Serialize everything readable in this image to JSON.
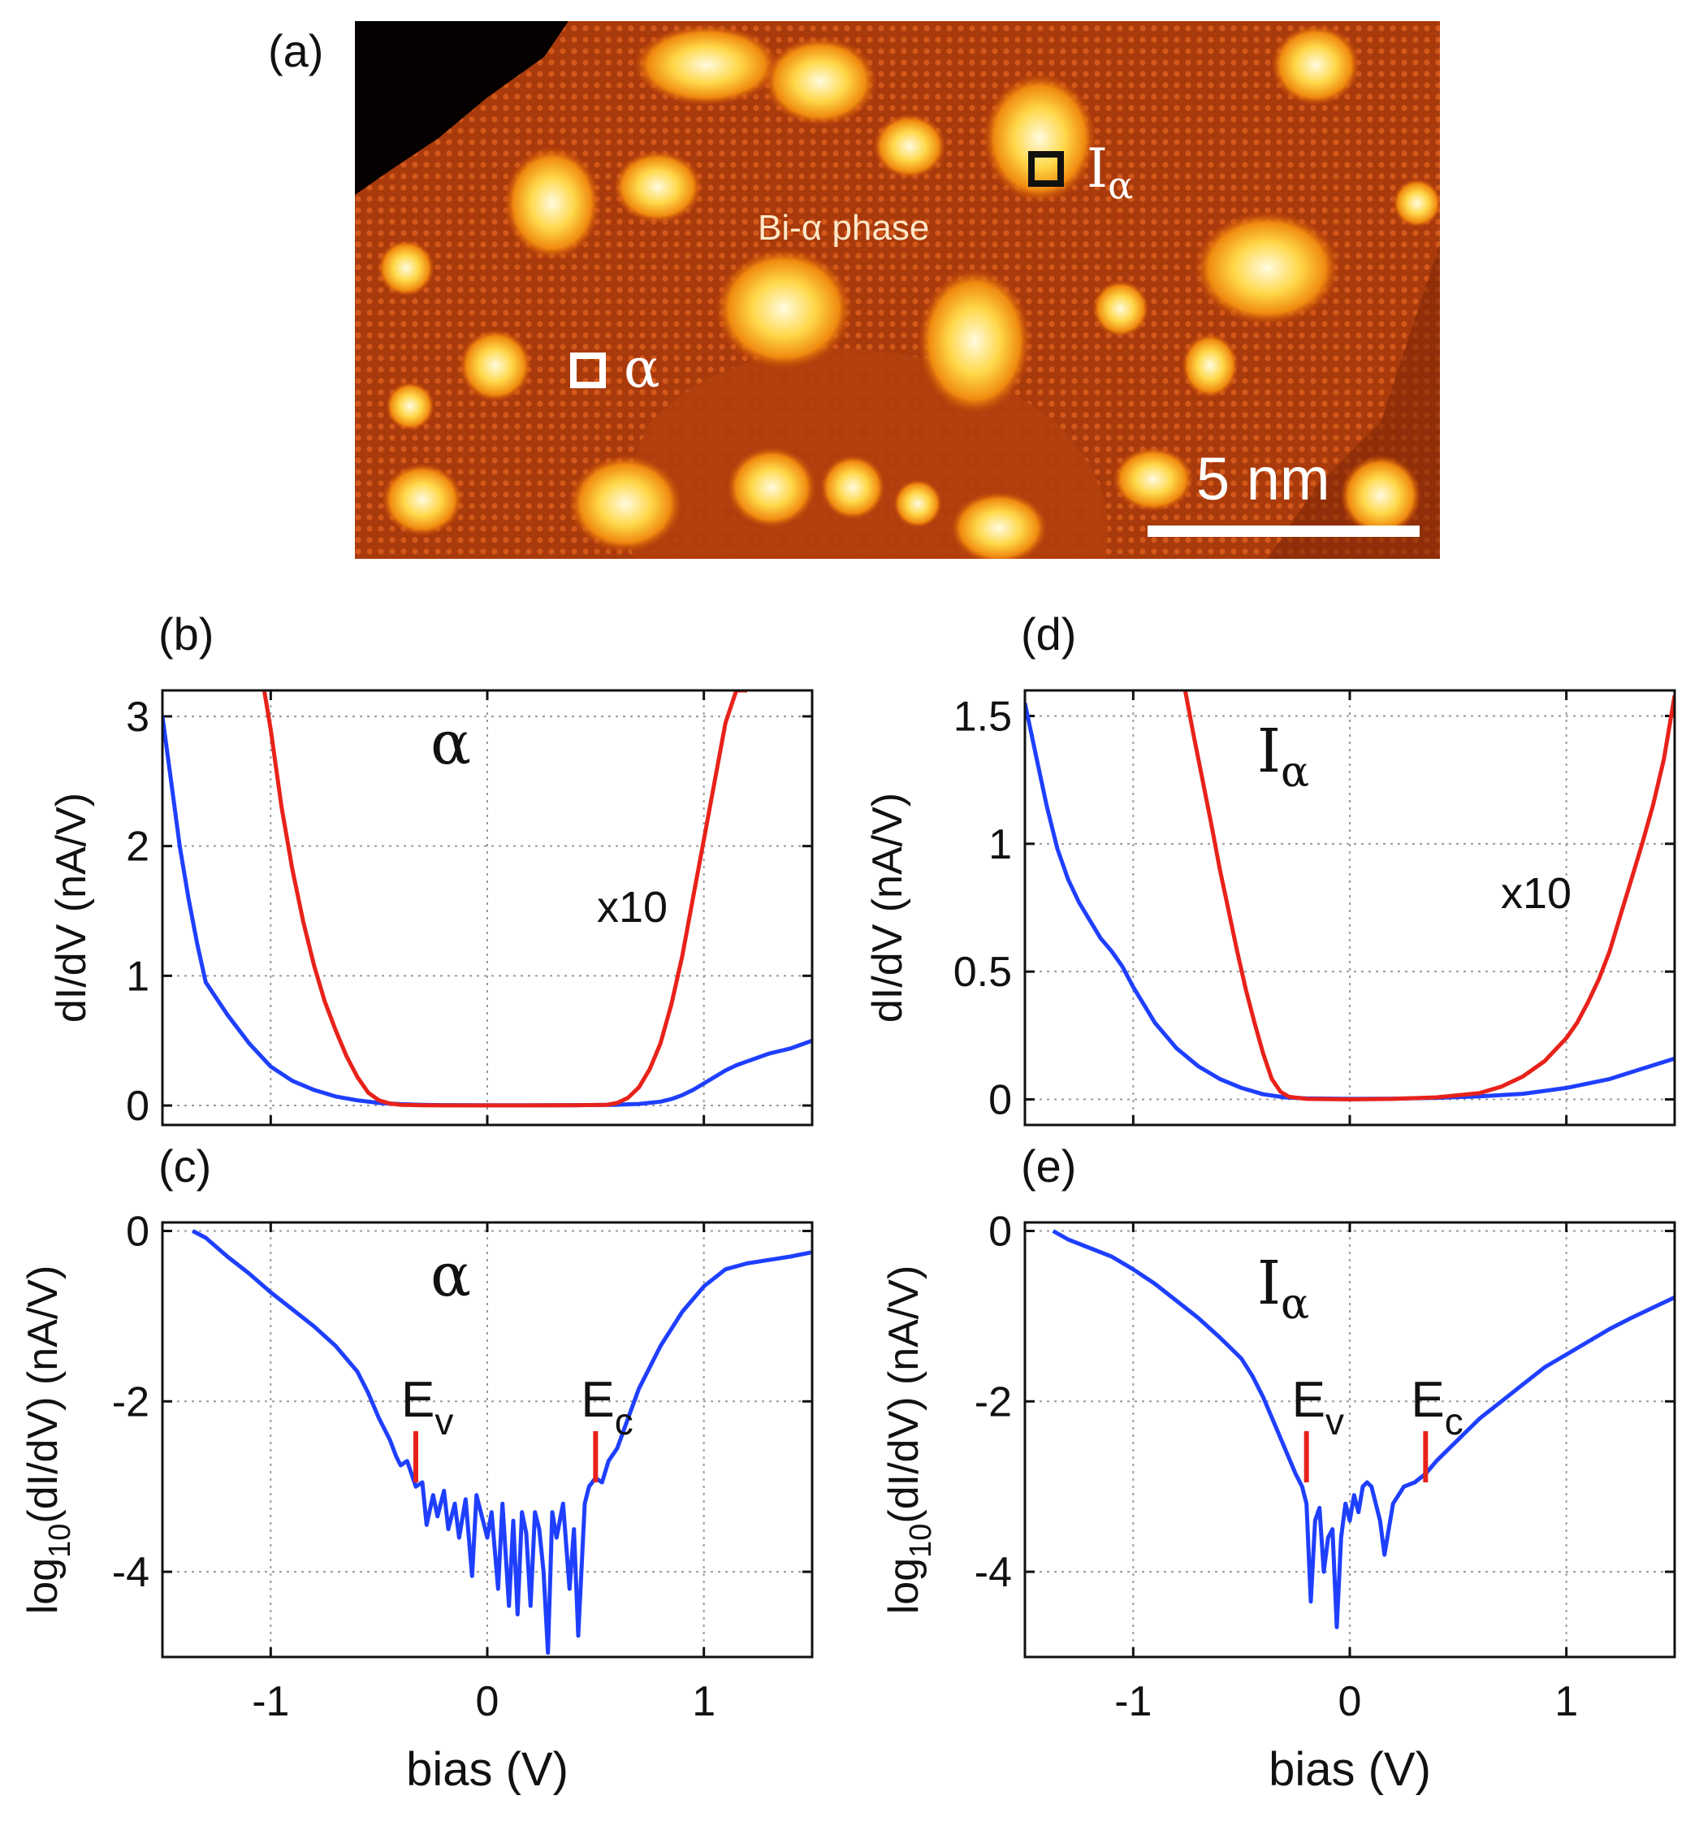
{
  "figure": {
    "colors": {
      "blue": "#1f3fff",
      "red": "#e8221a",
      "grid": "#9a9a9a"
    }
  },
  "panel_a": {
    "label": "(a)",
    "phase_label": "Bi-α phase",
    "marker_alpha": "α",
    "marker_ialpha": {
      "main": "I",
      "sub": "α"
    },
    "scale_bar": "5 nm",
    "image": "STM topograph (orange/yellow heat colormap) showing Bi-α phase islands with bright clusters"
  },
  "chart_data": [
    {
      "id": "b",
      "label": "(b)",
      "type": "line",
      "annotation": "α",
      "scale_note": "x10",
      "xlabel": "",
      "ylabel": "dI/dV (nA/V)",
      "xlim": [
        -1.5,
        1.5
      ],
      "ylim": [
        -0.15,
        3.2
      ],
      "xticks": [
        -1,
        0,
        1
      ],
      "xticklabels": [
        "",
        "",
        ""
      ],
      "yticks": [
        0,
        1,
        2,
        3
      ],
      "yticklabels": [
        "0",
        "1",
        "2",
        "3"
      ],
      "grid": true,
      "series": [
        {
          "name": "dI/dV",
          "color": "blue",
          "x": [
            -1.5,
            -1.46,
            -1.42,
            -1.38,
            -1.34,
            -1.3,
            -1.26,
            -1.2,
            -1.1,
            -1.0,
            -0.9,
            -0.8,
            -0.7,
            -0.6,
            -0.5,
            -0.4,
            -0.3,
            -0.2,
            0,
            0.2,
            0.4,
            0.6,
            0.7,
            0.8,
            0.85,
            0.9,
            0.95,
            1.0,
            1.05,
            1.1,
            1.15,
            1.2,
            1.25,
            1.3,
            1.35,
            1.4,
            1.45,
            1.5
          ],
          "y": [
            3.0,
            2.5,
            2.0,
            1.6,
            1.25,
            0.95,
            0.85,
            0.7,
            0.48,
            0.3,
            0.19,
            0.12,
            0.07,
            0.04,
            0.02,
            0.01,
            0.005,
            0.003,
            0.002,
            0.002,
            0.003,
            0.006,
            0.012,
            0.03,
            0.05,
            0.08,
            0.12,
            0.17,
            0.22,
            0.27,
            0.31,
            0.34,
            0.37,
            0.4,
            0.42,
            0.44,
            0.47,
            0.5
          ]
        },
        {
          "name": "dI/dV x10",
          "color": "red",
          "x": [
            -1.03,
            -1.0,
            -0.95,
            -0.9,
            -0.85,
            -0.8,
            -0.75,
            -0.7,
            -0.65,
            -0.6,
            -0.55,
            -0.5,
            -0.45,
            -0.4,
            -0.3,
            -0.2,
            0,
            0.2,
            0.4,
            0.55,
            0.6,
            0.65,
            0.7,
            0.75,
            0.8,
            0.85,
            0.9,
            0.95,
            1.0,
            1.05,
            1.1,
            1.15,
            1.2
          ],
          "y": [
            3.2,
            2.9,
            2.3,
            1.82,
            1.42,
            1.08,
            0.8,
            0.58,
            0.38,
            0.22,
            0.1,
            0.04,
            0.015,
            0.005,
            0.002,
            0.001,
            0.001,
            0.001,
            0.002,
            0.005,
            0.02,
            0.06,
            0.14,
            0.28,
            0.48,
            0.78,
            1.15,
            1.6,
            2.05,
            2.5,
            2.95,
            3.2,
            3.2
          ]
        }
      ]
    },
    {
      "id": "c",
      "label": "(c)",
      "type": "line",
      "annotation": "α",
      "xlabel": "bias (V)",
      "ylabel": "log10(dI/dV) (nA/V)",
      "ylabel_parts": {
        "pre": "log",
        "sub": "10",
        "post": "(dI/dV)  (nA/V)"
      },
      "xlim": [
        -1.5,
        1.5
      ],
      "ylim": [
        -5,
        0.1
      ],
      "xticks": [
        -1,
        0,
        1
      ],
      "xticklabels": [
        "-1",
        "0",
        "1"
      ],
      "yticks": [
        0,
        -2,
        -4
      ],
      "yticklabels": [
        "0",
        "-2",
        "-4"
      ],
      "grid": true,
      "markers": [
        {
          "main": "E",
          "sub": "v",
          "x": -0.33,
          "y_range": [
            -2.95,
            -2.35
          ]
        },
        {
          "main": "E",
          "sub": "c",
          "x": 0.5,
          "y_range": [
            -2.95,
            -2.35
          ]
        }
      ],
      "series": [
        {
          "name": "log10(dI/dV)",
          "color": "blue",
          "x": [
            -1.36,
            -1.3,
            -1.2,
            -1.1,
            -1.0,
            -0.9,
            -0.8,
            -0.7,
            -0.6,
            -0.55,
            -0.5,
            -0.45,
            -0.42,
            -0.4,
            -0.37,
            -0.35,
            -0.33,
            -0.3,
            -0.28,
            -0.25,
            -0.23,
            -0.2,
            -0.18,
            -0.15,
            -0.13,
            -0.1,
            -0.07,
            -0.05,
            -0.02,
            0,
            0.02,
            0.05,
            0.07,
            0.1,
            0.12,
            0.14,
            0.16,
            0.18,
            0.2,
            0.22,
            0.24,
            0.26,
            0.28,
            0.3,
            0.32,
            0.35,
            0.38,
            0.4,
            0.42,
            0.45,
            0.47,
            0.5,
            0.53,
            0.56,
            0.6,
            0.65,
            0.7,
            0.8,
            0.9,
            1.0,
            1.1,
            1.2,
            1.3,
            1.4,
            1.5
          ],
          "y": [
            0,
            -0.08,
            -0.3,
            -0.5,
            -0.72,
            -0.92,
            -1.12,
            -1.35,
            -1.65,
            -1.9,
            -2.2,
            -2.45,
            -2.65,
            -2.75,
            -2.7,
            -2.85,
            -3.0,
            -2.95,
            -3.45,
            -3.1,
            -3.35,
            -3.05,
            -3.5,
            -3.2,
            -3.6,
            -3.15,
            -4.05,
            -3.1,
            -3.4,
            -3.6,
            -3.3,
            -4.2,
            -3.2,
            -4.4,
            -3.4,
            -4.5,
            -3.3,
            -3.55,
            -4.4,
            -3.3,
            -3.5,
            -4.0,
            -4.95,
            -3.3,
            -3.6,
            -3.2,
            -4.2,
            -3.5,
            -4.75,
            -3.2,
            -3.0,
            -2.9,
            -2.95,
            -2.7,
            -2.55,
            -2.2,
            -1.85,
            -1.35,
            -0.95,
            -0.65,
            -0.45,
            -0.38,
            -0.34,
            -0.3,
            -0.25
          ]
        }
      ]
    },
    {
      "id": "d",
      "label": "(d)",
      "type": "line",
      "annotation": {
        "main": "I",
        "sub": "α"
      },
      "scale_note": "x10",
      "xlabel": "",
      "ylabel": "dI/dV (nA/V)",
      "xlim": [
        -1.5,
        1.5
      ],
      "ylim": [
        -0.1,
        1.6
      ],
      "xticks": [
        -1,
        0,
        1
      ],
      "xticklabels": [
        "",
        "",
        ""
      ],
      "yticks": [
        0,
        0.5,
        1,
        1.5
      ],
      "yticklabels": [
        "0",
        "0.5",
        "1",
        "1.5"
      ],
      "grid": true,
      "series": [
        {
          "name": "dI/dV",
          "color": "blue",
          "x": [
            -1.5,
            -1.45,
            -1.4,
            -1.35,
            -1.3,
            -1.25,
            -1.2,
            -1.15,
            -1.1,
            -1.05,
            -1.0,
            -0.9,
            -0.8,
            -0.7,
            -0.6,
            -0.5,
            -0.4,
            -0.3,
            -0.2,
            0,
            0.2,
            0.4,
            0.6,
            0.8,
            1.0,
            1.2,
            1.35,
            1.5
          ],
          "y": [
            1.55,
            1.35,
            1.15,
            0.98,
            0.86,
            0.77,
            0.7,
            0.63,
            0.58,
            0.52,
            0.44,
            0.3,
            0.2,
            0.13,
            0.08,
            0.045,
            0.02,
            0.008,
            0.004,
            0.002,
            0.003,
            0.006,
            0.012,
            0.022,
            0.045,
            0.08,
            0.12,
            0.16
          ]
        },
        {
          "name": "dI/dV x10",
          "color": "red",
          "x": [
            -0.76,
            -0.72,
            -0.68,
            -0.64,
            -0.6,
            -0.56,
            -0.52,
            -0.48,
            -0.44,
            -0.4,
            -0.36,
            -0.32,
            -0.28,
            -0.2,
            0,
            0.2,
            0.4,
            0.6,
            0.7,
            0.8,
            0.9,
            1.0,
            1.05,
            1.1,
            1.15,
            1.2,
            1.25,
            1.3,
            1.35,
            1.4,
            1.45,
            1.5
          ],
          "y": [
            1.6,
            1.42,
            1.25,
            1.08,
            0.9,
            0.74,
            0.58,
            0.43,
            0.3,
            0.18,
            0.08,
            0.03,
            0.01,
            0.002,
            0.0,
            0.002,
            0.008,
            0.025,
            0.05,
            0.09,
            0.15,
            0.24,
            0.3,
            0.38,
            0.47,
            0.58,
            0.72,
            0.86,
            1.0,
            1.15,
            1.33,
            1.58
          ]
        }
      ]
    },
    {
      "id": "e",
      "label": "(e)",
      "type": "line",
      "annotation": {
        "main": "I",
        "sub": "α"
      },
      "xlabel": "bias (V)",
      "ylabel": "log10(dI/dV) (nA/V)",
      "ylabel_parts": {
        "pre": "log",
        "sub": "10",
        "post": "(dI/dV)  (nA/V)"
      },
      "xlim": [
        -1.5,
        1.5
      ],
      "ylim": [
        -5,
        0.1
      ],
      "xticks": [
        -1,
        0,
        1
      ],
      "xticklabels": [
        "-1",
        "0",
        "1"
      ],
      "yticks": [
        0,
        -2,
        -4
      ],
      "yticklabels": [
        "0",
        "-2",
        "-4"
      ],
      "grid": true,
      "markers": [
        {
          "main": "E",
          "sub": "v",
          "x": -0.2,
          "y_range": [
            -2.95,
            -2.35
          ]
        },
        {
          "main": "E",
          "sub": "c",
          "x": 0.35,
          "y_range": [
            -2.95,
            -2.35
          ]
        }
      ],
      "series": [
        {
          "name": "log10(dI/dV)",
          "color": "blue",
          "x": [
            -1.37,
            -1.3,
            -1.2,
            -1.1,
            -1.0,
            -0.9,
            -0.8,
            -0.7,
            -0.6,
            -0.5,
            -0.45,
            -0.4,
            -0.35,
            -0.3,
            -0.25,
            -0.22,
            -0.2,
            -0.18,
            -0.16,
            -0.14,
            -0.12,
            -0.1,
            -0.08,
            -0.06,
            -0.04,
            -0.02,
            0,
            0.02,
            0.04,
            0.06,
            0.08,
            0.1,
            0.12,
            0.14,
            0.16,
            0.18,
            0.2,
            0.25,
            0.3,
            0.35,
            0.4,
            0.5,
            0.6,
            0.7,
            0.8,
            0.9,
            1.0,
            1.1,
            1.2,
            1.3,
            1.4,
            1.5
          ],
          "y": [
            0,
            -0.1,
            -0.2,
            -0.3,
            -0.45,
            -0.62,
            -0.82,
            -1.02,
            -1.25,
            -1.5,
            -1.7,
            -1.95,
            -2.25,
            -2.55,
            -2.85,
            -3.0,
            -3.2,
            -4.35,
            -3.4,
            -3.25,
            -4.0,
            -3.6,
            -3.5,
            -4.65,
            -3.6,
            -3.2,
            -3.4,
            -3.1,
            -3.3,
            -3.0,
            -2.95,
            -3.0,
            -3.2,
            -3.4,
            -3.8,
            -3.5,
            -3.2,
            -3.0,
            -2.95,
            -2.85,
            -2.7,
            -2.45,
            -2.2,
            -2.0,
            -1.8,
            -1.6,
            -1.45,
            -1.3,
            -1.15,
            -1.02,
            -0.9,
            -0.78
          ]
        }
      ]
    }
  ]
}
